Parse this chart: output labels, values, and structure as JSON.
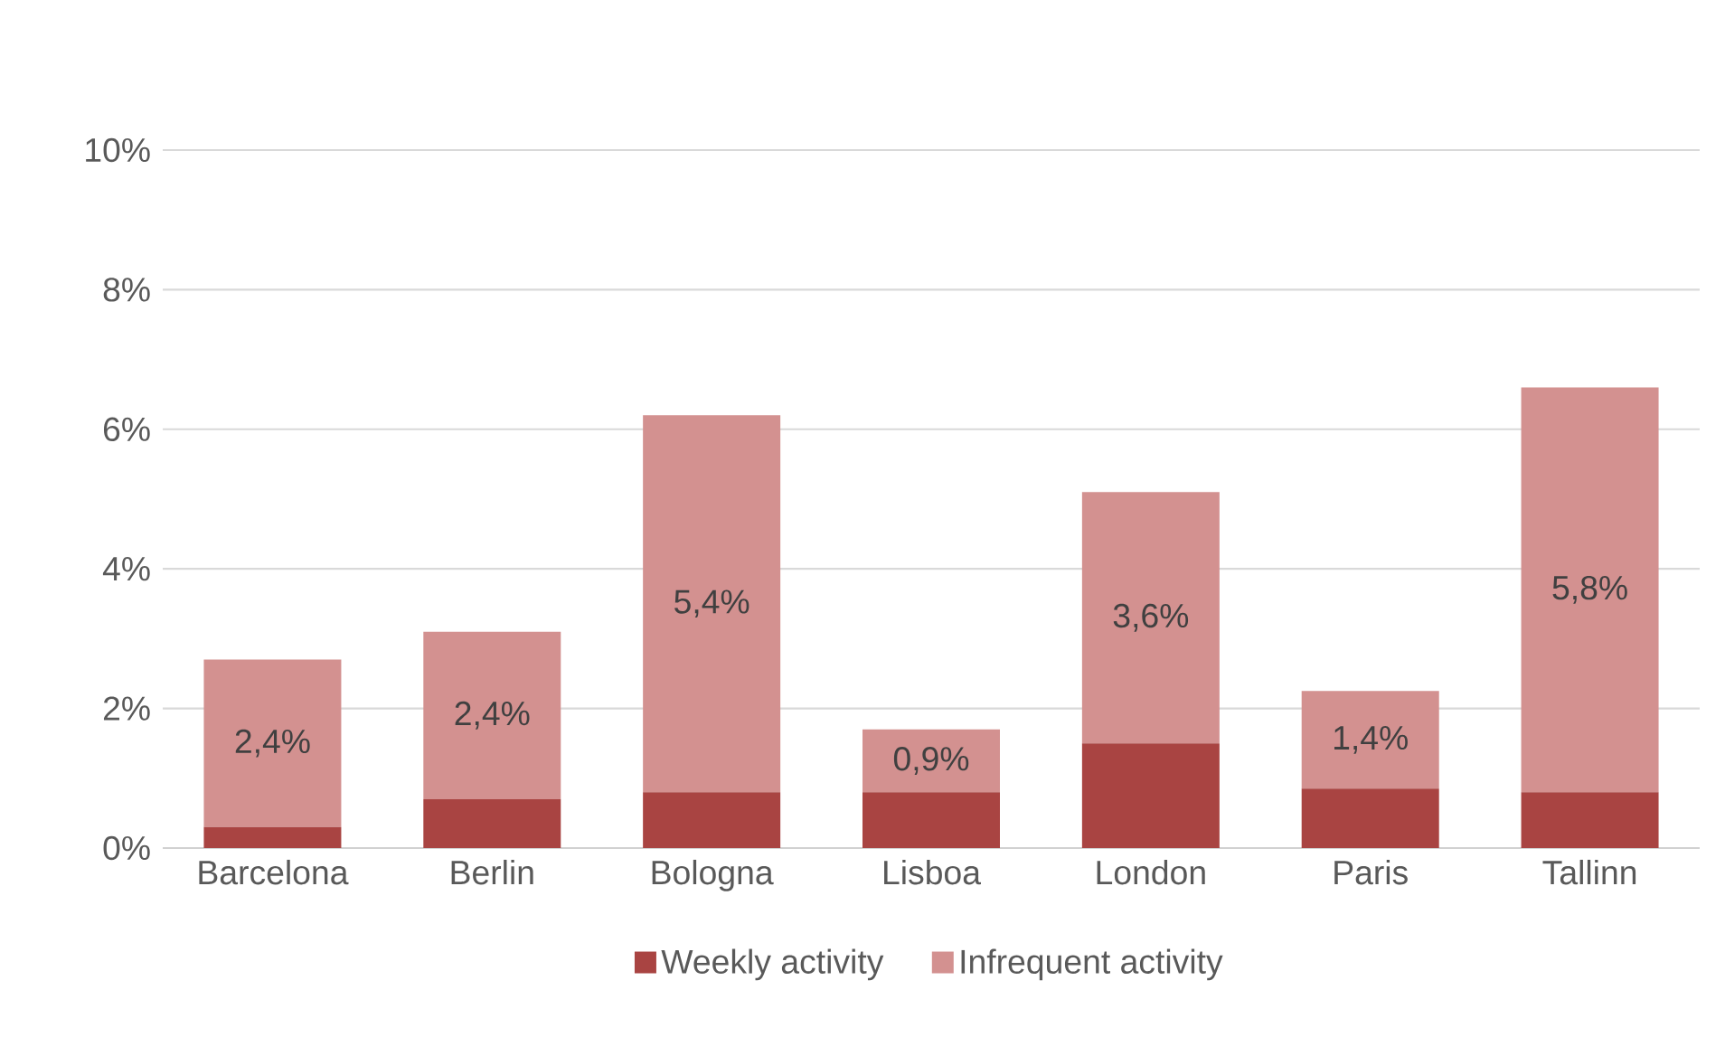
{
  "chart_data": {
    "type": "bar",
    "stacked": true,
    "categories": [
      "Barcelona",
      "Berlin",
      "Bologna",
      "Lisboa",
      "London",
      "Paris",
      "Tallinn"
    ],
    "series": [
      {
        "name": "Weekly activity",
        "color": "#a94442",
        "values": [
          0.3,
          0.7,
          0.8,
          0.8,
          1.5,
          0.85,
          0.8
        ]
      },
      {
        "name": "Infrequent activity",
        "color": "#d39190",
        "values": [
          2.4,
          2.4,
          5.4,
          0.9,
          3.6,
          1.4,
          5.8
        ],
        "value_labels": [
          "2,4%",
          "2,4%",
          "5,4%",
          "0,9%",
          "3,6%",
          "1,4%",
          "5,8%"
        ]
      }
    ],
    "ylim": [
      0,
      10
    ],
    "yticks": [
      {
        "value": 0,
        "label": "0%"
      },
      {
        "value": 2,
        "label": "2%"
      },
      {
        "value": 4,
        "label": "4%"
      },
      {
        "value": 6,
        "label": "6%"
      },
      {
        "value": 8,
        "label": "8%"
      },
      {
        "value": 10,
        "label": "10%"
      }
    ],
    "grid": "y",
    "legend": "bottom"
  }
}
